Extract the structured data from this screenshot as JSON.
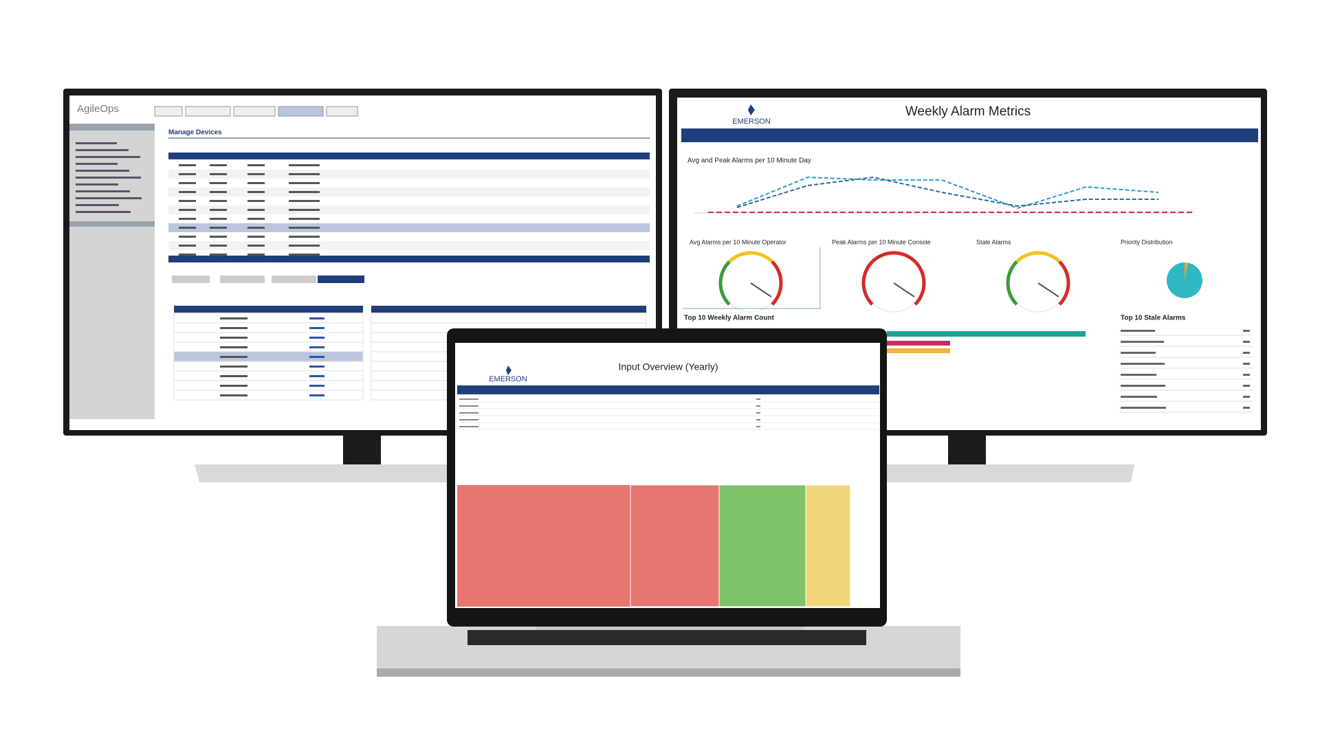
{
  "left_monitor": {
    "app_name": "AgileOps",
    "page_title": "Manage Devices"
  },
  "right_monitor": {
    "logo": "EMERSON",
    "title": "Weekly Alarm Metrics",
    "line_chart_title": "Avg and Peak Alarms per 10 Minute Day",
    "gauge_titles": [
      "Avg Alarms per 10 Minute Operator",
      "Peak Alarms per 10 Minute Console",
      "Stale Alarms"
    ],
    "pie_title": "Priority Distribution",
    "bar_title": "Top 10 Weekly Alarm Count",
    "table_title": "Top 10 Stale Alarms"
  },
  "laptop": {
    "logo": "EMERSON",
    "title": "Input Overview (Yearly)"
  }
}
